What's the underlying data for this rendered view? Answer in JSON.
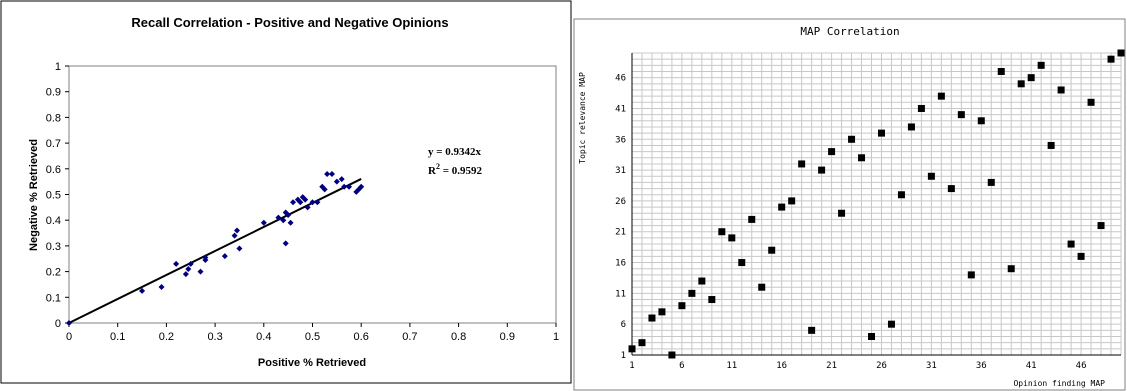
{
  "chart_data": [
    {
      "type": "scatter",
      "title": "Recall Correlation - Positive and Negative Opinions",
      "xlabel": "Positive % Retrieved",
      "ylabel": "Negative % Retrieved",
      "xlim": [
        0,
        1
      ],
      "ylim": [
        0,
        1
      ],
      "xticks": [
        "0",
        "0.1",
        "0.2",
        "0.3",
        "0.4",
        "0.5",
        "0.6",
        "0.7",
        "0.8",
        "0.9",
        "1"
      ],
      "yticks": [
        "0",
        "0.1",
        "0.2",
        "0.3",
        "0.4",
        "0.5",
        "0.6",
        "0.7",
        "0.8",
        "0.9",
        "1"
      ],
      "grid": false,
      "trendline": {
        "slope": 0.9342,
        "x_range": [
          0,
          0.6
        ]
      },
      "annotations": {
        "equation": "y = 0.9342x",
        "r2_label": "R",
        "r2_sup": "2",
        "r2_value": " = 0.9592"
      },
      "marker_color": "#000080",
      "points": [
        [
          0.0,
          0.0
        ],
        [
          0.15,
          0.125
        ],
        [
          0.19,
          0.14
        ],
        [
          0.22,
          0.23
        ],
        [
          0.24,
          0.19
        ],
        [
          0.245,
          0.21
        ],
        [
          0.25,
          0.23
        ],
        [
          0.27,
          0.2
        ],
        [
          0.28,
          0.245
        ],
        [
          0.28,
          0.255
        ],
        [
          0.32,
          0.26
        ],
        [
          0.34,
          0.34
        ],
        [
          0.345,
          0.36
        ],
        [
          0.35,
          0.29
        ],
        [
          0.4,
          0.39
        ],
        [
          0.43,
          0.41
        ],
        [
          0.44,
          0.4
        ],
        [
          0.445,
          0.43
        ],
        [
          0.445,
          0.31
        ],
        [
          0.45,
          0.42
        ],
        [
          0.455,
          0.39
        ],
        [
          0.46,
          0.47
        ],
        [
          0.47,
          0.48
        ],
        [
          0.475,
          0.47
        ],
        [
          0.48,
          0.49
        ],
        [
          0.485,
          0.48
        ],
        [
          0.49,
          0.45
        ],
        [
          0.5,
          0.47
        ],
        [
          0.51,
          0.47
        ],
        [
          0.52,
          0.53
        ],
        [
          0.525,
          0.52
        ],
        [
          0.53,
          0.58
        ],
        [
          0.54,
          0.58
        ],
        [
          0.55,
          0.55
        ],
        [
          0.56,
          0.56
        ],
        [
          0.565,
          0.53
        ],
        [
          0.575,
          0.53
        ],
        [
          0.59,
          0.51
        ],
        [
          0.595,
          0.52
        ],
        [
          0.6,
          0.53
        ]
      ]
    },
    {
      "type": "scatter",
      "title": "MAP Correlation",
      "xlabel": "Opinion finding MAP",
      "ylabel": "Topic relevance MAP",
      "xlim": [
        1,
        50
      ],
      "ylim": [
        1,
        50
      ],
      "xticks": [
        "1",
        "6",
        "11",
        "16",
        "21",
        "26",
        "31",
        "36",
        "41",
        "46"
      ],
      "yticks": [
        "1",
        "6",
        "11",
        "16",
        "21",
        "26",
        "31",
        "36",
        "41",
        "46"
      ],
      "grid": true,
      "marker_color": "#000000",
      "points": [
        [
          1,
          2
        ],
        [
          2,
          3
        ],
        [
          3,
          7
        ],
        [
          4,
          8
        ],
        [
          5,
          1
        ],
        [
          6,
          9
        ],
        [
          7,
          11
        ],
        [
          8,
          13
        ],
        [
          9,
          10
        ],
        [
          10,
          21
        ],
        [
          11,
          20
        ],
        [
          12,
          16
        ],
        [
          13,
          23
        ],
        [
          14,
          12
        ],
        [
          15,
          18
        ],
        [
          16,
          25
        ],
        [
          17,
          26
        ],
        [
          18,
          32
        ],
        [
          19,
          5
        ],
        [
          20,
          31
        ],
        [
          21,
          34
        ],
        [
          22,
          24
        ],
        [
          23,
          36
        ],
        [
          24,
          33
        ],
        [
          25,
          4
        ],
        [
          26,
          37
        ],
        [
          27,
          6
        ],
        [
          28,
          27
        ],
        [
          29,
          38
        ],
        [
          30,
          41
        ],
        [
          31,
          30
        ],
        [
          32,
          43
        ],
        [
          33,
          28
        ],
        [
          34,
          40
        ],
        [
          35,
          14
        ],
        [
          36,
          39
        ],
        [
          37,
          29
        ],
        [
          38,
          47
        ],
        [
          39,
          15
        ],
        [
          40,
          45
        ],
        [
          41,
          46
        ],
        [
          42,
          48
        ],
        [
          43,
          35
        ],
        [
          44,
          44
        ],
        [
          45,
          19
        ],
        [
          46,
          17
        ],
        [
          47,
          42
        ],
        [
          48,
          22
        ],
        [
          49,
          49
        ],
        [
          50,
          50
        ]
      ]
    }
  ]
}
